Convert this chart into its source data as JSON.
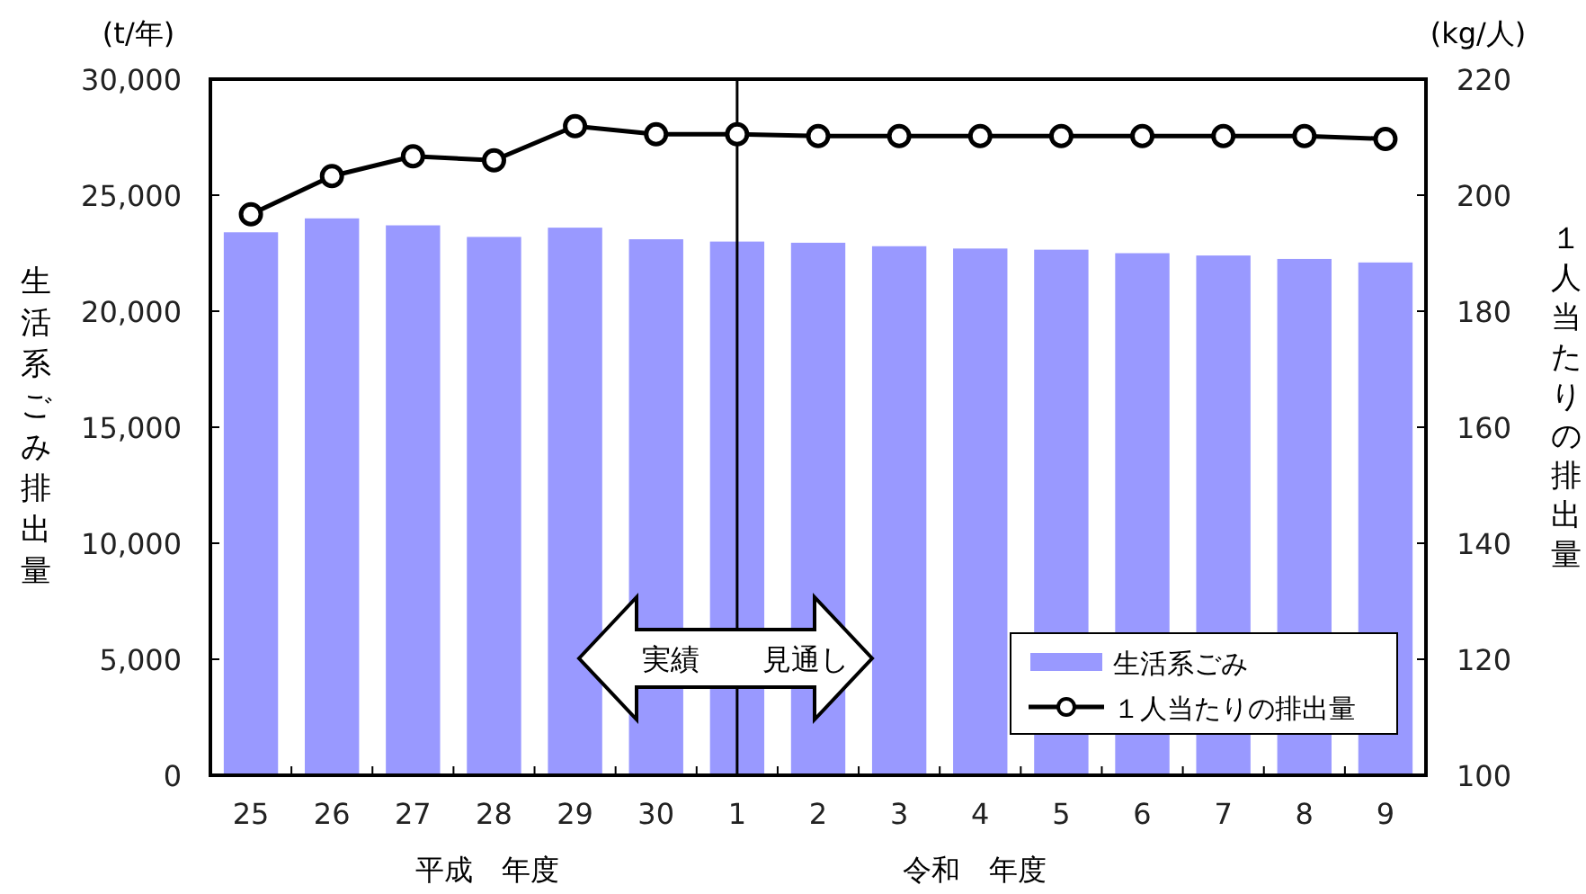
{
  "chart_data": {
    "type": "bar",
    "ylabel": "生活系ごみ排出量",
    "y2label": "１人当たりの排出量",
    "categories": [
      "25",
      "26",
      "27",
      "28",
      "29",
      "30",
      "1",
      "2",
      "3",
      "4",
      "5",
      "6",
      "7",
      "8",
      "9"
    ],
    "series": [
      {
        "name": "生活系ごみ",
        "color": "#9999ff",
        "values": [
          23400,
          24000,
          23700,
          23200,
          23600,
          23100,
          23000,
          22950,
          22800,
          22700,
          22650,
          22500,
          22400,
          22250,
          22100
        ]
      },
      {
        "name": "１人当たりの排出量",
        "type": "line",
        "axis": "y2",
        "color": "#000000",
        "marker": "circle",
        "values": [
          196.7,
          203.3,
          206.7,
          206,
          211.9,
          210.5,
          210.5,
          210.2,
          210.2,
          210.2,
          210.2,
          210.2,
          210.2,
          210.2,
          209.7
        ]
      }
    ],
    "ylim": [
      0,
      30000
    ],
    "yticks": [
      {
        "value": 0,
        "label": "0"
      },
      {
        "value": 5000,
        "label": "5,000"
      },
      {
        "value": 10000,
        "label": "10,000"
      },
      {
        "value": 15000,
        "label": "15,000"
      },
      {
        "value": 20000,
        "label": "20,000"
      },
      {
        "value": 25000,
        "label": "25,000"
      },
      {
        "value": 30000,
        "label": "30,000"
      }
    ],
    "y2lim": [
      100,
      220
    ],
    "y2ticks": [
      100,
      120,
      140,
      160,
      180,
      200,
      220
    ],
    "ref_lines": [
      {
        "axis": "x",
        "value": "1",
        "color": "#000000"
      }
    ],
    "annotations": [
      "(t/年)",
      "(kg/人)",
      "実績",
      "見通し",
      "平成　年度",
      "令和　年度"
    ],
    "legend": "bottom right",
    "grid": false
  }
}
